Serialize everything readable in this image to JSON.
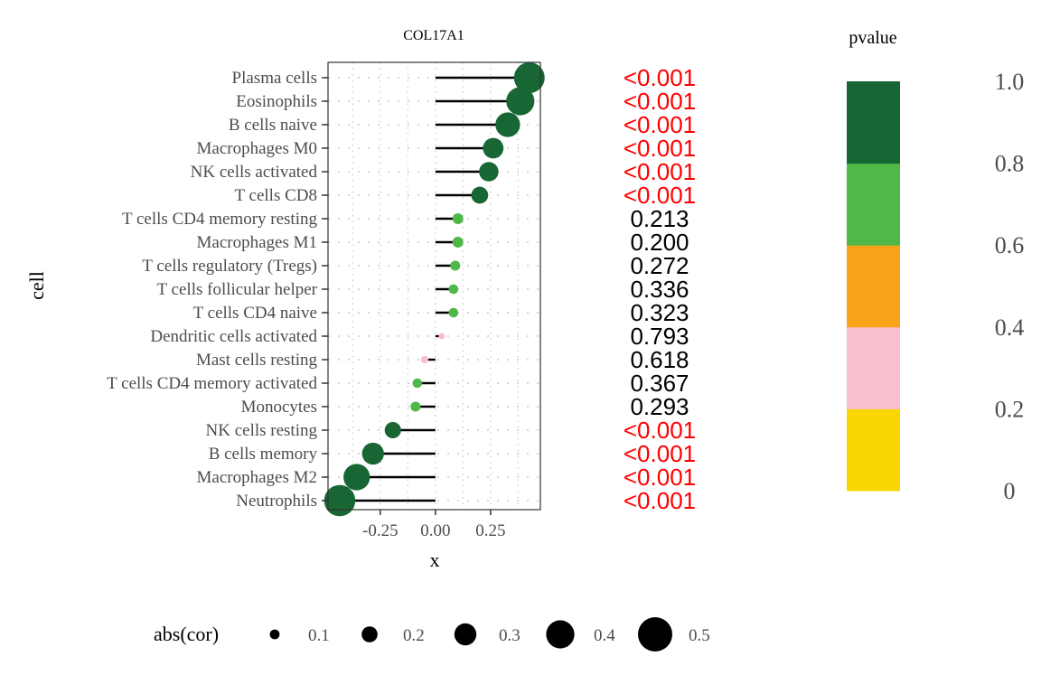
{
  "chart_data": {
    "type": "scatter",
    "subtype": "lollipop",
    "title": "COL17A1",
    "xlabel": "x",
    "ylabel": "cell",
    "xlim": [
      -0.487,
      0.476
    ],
    "xticks": [
      -0.25,
      0.0,
      0.25
    ],
    "xtick_labels": [
      "-0.25",
      "0.00",
      "0.25"
    ],
    "grid": true,
    "categories": [
      "Plasma cells",
      "Eosinophils",
      "B cells naive",
      "Macrophages M0",
      "NK cells activated",
      "T cells CD8",
      "T cells CD4 memory resting",
      "Macrophages M1",
      "T cells regulatory (Tregs)",
      "T cells follicular helper",
      "T cells CD4 naive",
      "Dendritic cells activated",
      "Mast cells resting",
      "T cells CD4 memory activated",
      "Monocytes",
      "NK cells resting",
      "B cells memory",
      "Macrophages M2",
      "Neutrophils"
    ],
    "cor": [
      0.426,
      0.385,
      0.328,
      0.262,
      0.242,
      0.201,
      0.102,
      0.102,
      0.09,
      0.082,
      0.082,
      0.029,
      -0.049,
      -0.082,
      -0.09,
      -0.193,
      -0.283,
      -0.357,
      -0.434
    ],
    "pvalue_labels": [
      "<0.001",
      "<0.001",
      "<0.001",
      "<0.001",
      "<0.001",
      "<0.001",
      "0.213",
      "0.200",
      "0.272",
      "0.336",
      "0.323",
      "0.793",
      "0.618",
      "0.367",
      "0.293",
      "<0.001",
      "<0.001",
      "<0.001",
      "<0.001"
    ],
    "pvalue": [
      0.0005,
      0.0005,
      0.0005,
      0.0005,
      0.0005,
      0.0005,
      0.213,
      0.2,
      0.272,
      0.336,
      0.323,
      0.793,
      0.618,
      0.367,
      0.293,
      0.0005,
      0.0005,
      0.0005,
      0.0005
    ],
    "point_colors": [
      "#176633",
      "#176633",
      "#176633",
      "#176633",
      "#176633",
      "#176633",
      "#4fb848",
      "#4fb848",
      "#4fb848",
      "#4fb848",
      "#4fb848",
      "#f9bfcf",
      "#f9bfcf",
      "#4fb848",
      "#4fb848",
      "#176633",
      "#176633",
      "#176633",
      "#176633"
    ],
    "significant_color": "#ff0000",
    "nonsignificant_color": "#000000",
    "color_legend": {
      "title": "pvalue",
      "colors_bottom_to_top": [
        "#f8d602",
        "#f9bfcf",
        "#f7a31c",
        "#4fb848",
        "#176633"
      ],
      "tick_labels_bottom_to_top": [
        "0",
        "0.2",
        "0.4",
        "0.6",
        "0.8",
        "1.0"
      ],
      "placement": "right"
    },
    "size_legend": {
      "title": "abs(cor)",
      "values": [
        0.1,
        0.2,
        0.3,
        0.4,
        0.5
      ],
      "labels": [
        "0.1",
        "0.2",
        "0.3",
        "0.4",
        "0.5"
      ],
      "placement": "bottom"
    }
  }
}
